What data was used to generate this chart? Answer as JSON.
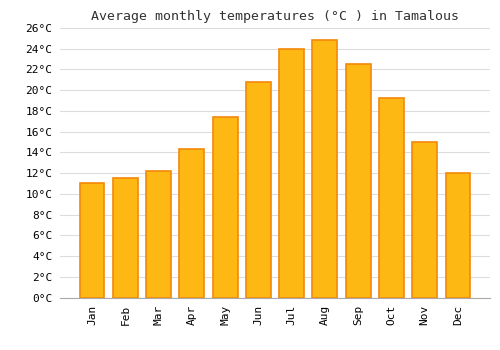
{
  "title": "Average monthly temperatures (°C ) in Tamalous",
  "months": [
    "Jan",
    "Feb",
    "Mar",
    "Apr",
    "May",
    "Jun",
    "Jul",
    "Aug",
    "Sep",
    "Oct",
    "Nov",
    "Dec"
  ],
  "temperatures": [
    11,
    11.5,
    12.2,
    14.3,
    17.4,
    20.8,
    24.0,
    24.8,
    22.5,
    19.2,
    15.0,
    12.0
  ],
  "bar_color": "#FDB813",
  "bar_edge_color": "#F4880A",
  "background_color": "#FFFFFF",
  "plot_bg_color": "#FFFFFF",
  "grid_color": "#DDDDDD",
  "ylim": [
    0,
    26
  ],
  "yticks": [
    0,
    2,
    4,
    6,
    8,
    10,
    12,
    14,
    16,
    18,
    20,
    22,
    24,
    26
  ],
  "title_fontsize": 9.5,
  "tick_fontsize": 8,
  "bar_width": 0.75
}
